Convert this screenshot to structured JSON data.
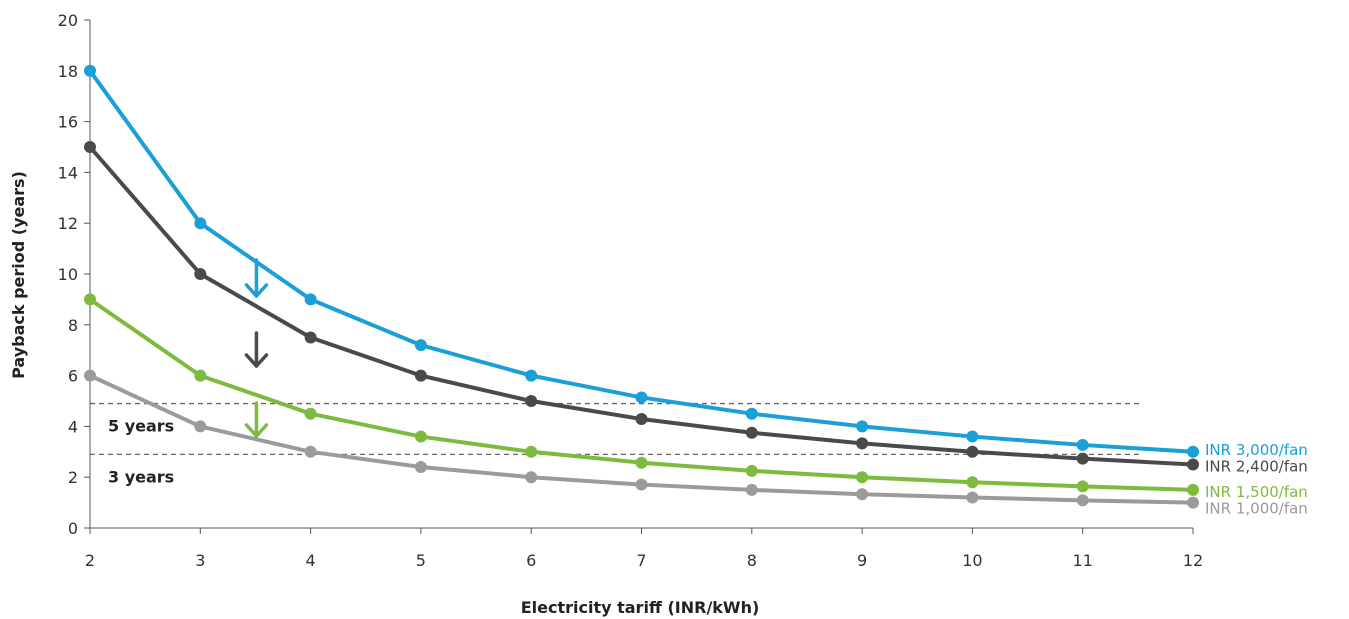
{
  "chart_data": {
    "type": "line",
    "title": "",
    "xlabel": "Electricity tariff (INR/kWh)",
    "ylabel": "Payback period (years)",
    "x": [
      2,
      3,
      4,
      5,
      6,
      7,
      8,
      9,
      10,
      11,
      12
    ],
    "xlim": [
      2,
      12
    ],
    "ylim": [
      0,
      20
    ],
    "xticks": [
      "2",
      "3",
      "4",
      "5",
      "6",
      "7",
      "8",
      "9",
      "10",
      "11",
      "12"
    ],
    "yticks": [
      "0",
      "2",
      "4",
      "6",
      "8",
      "10",
      "12",
      "14",
      "16",
      "18",
      "20"
    ],
    "grid": false,
    "legend": "right, inline at line ends",
    "series": [
      {
        "name": "INR 3,000/fan",
        "color": "#1a9fd6",
        "values": [
          18,
          12,
          9,
          7.2,
          6,
          5.14,
          4.5,
          4,
          3.6,
          3.27,
          3
        ]
      },
      {
        "name": "INR 2,400/fan",
        "color": "#4a4a4a",
        "values": [
          15,
          10,
          7.5,
          6,
          5,
          4.29,
          3.75,
          3.33,
          3,
          2.73,
          2.5
        ]
      },
      {
        "name": "INR 1,500/fan",
        "color": "#7dbb3f",
        "values": [
          9,
          6,
          4.5,
          3.6,
          3,
          2.57,
          2.25,
          2,
          1.8,
          1.64,
          1.5
        ]
      },
      {
        "name": "INR 1,000/fan",
        "color": "#9b9b9b",
        "values": [
          6,
          4,
          3,
          2.4,
          2,
          1.71,
          1.5,
          1.33,
          1.2,
          1.09,
          1
        ]
      }
    ],
    "reference_lines": [
      {
        "label": "5 years",
        "y": 4.9
      },
      {
        "label": "3 years",
        "y": 2.9
      }
    ],
    "arrows": [
      {
        "color": "#1a9fd6",
        "x": 3.5
      },
      {
        "color": "#4a4a4a",
        "x": 3.5
      },
      {
        "color": "#7dbb3f",
        "x": 3.5
      }
    ]
  }
}
